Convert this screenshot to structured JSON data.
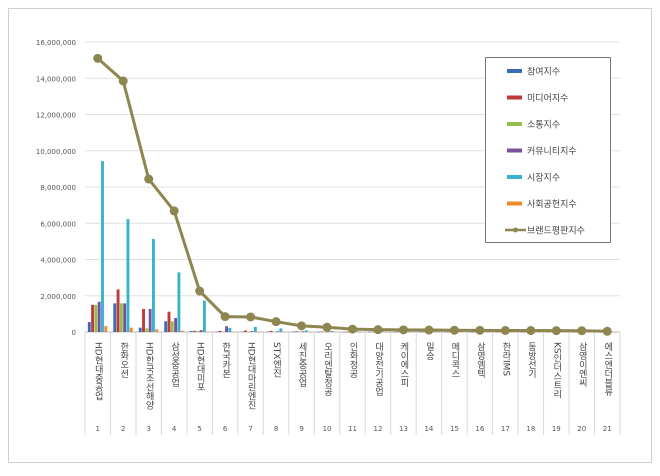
{
  "chart_data": {
    "type": "bar",
    "title": "",
    "xlabel": "",
    "ylabel": "",
    "ylim": [
      0,
      16000000
    ],
    "yticks": [
      "0",
      "2,000,000",
      "4,000,000",
      "6,000,000",
      "8,000,000",
      "10,000,000",
      "12,000,000",
      "14,000,000",
      "16,000,000"
    ],
    "grid": true,
    "legend_position": "top-right",
    "ranks": [
      "1",
      "2",
      "3",
      "4",
      "5",
      "6",
      "7",
      "8",
      "9",
      "10",
      "11",
      "12",
      "13",
      "14",
      "15",
      "16",
      "17",
      "18",
      "19",
      "20",
      "21"
    ],
    "categories": [
      "HD현대중공업",
      "한화오션",
      "HD한국조선해양",
      "삼성중공업",
      "HD현대미포",
      "한국카본",
      "HD현대마린엔진",
      "STX엔진",
      "세진중공업",
      "오리엔탈정공",
      "인화정공",
      "대양전기공업",
      "케이에스피",
      "일승",
      "메디콕스",
      "삼영엠텍",
      "한라IMS",
      "동방선기",
      "KS인더스트리",
      "삼영이엔씨",
      "에스엔더블류"
    ],
    "series": [
      {
        "name": "참여지수",
        "type": "bar",
        "color": "#3c6bb5",
        "values": [
          550000,
          1580000,
          240000,
          590000,
          50000,
          20000,
          20000,
          20000,
          15000,
          10000,
          10000,
          10000,
          10000,
          8000,
          8000,
          8000,
          8000,
          8000,
          8000,
          8000,
          5000
        ]
      },
      {
        "name": "미디어지수",
        "type": "bar",
        "color": "#c0393b",
        "values": [
          1500000,
          2350000,
          1270000,
          1120000,
          60000,
          60000,
          80000,
          60000,
          40000,
          30000,
          20000,
          20000,
          20000,
          15000,
          15000,
          15000,
          15000,
          15000,
          15000,
          15000,
          10000
        ]
      },
      {
        "name": "소통지수",
        "type": "bar",
        "color": "#92c04d",
        "values": [
          1500000,
          1580000,
          200000,
          590000,
          50000,
          20000,
          20000,
          20000,
          15000,
          10000,
          10000,
          10000,
          10000,
          8000,
          8000,
          8000,
          8000,
          8000,
          8000,
          8000,
          5000
        ]
      },
      {
        "name": "커뮤니티지수",
        "type": "bar",
        "color": "#7a519e",
        "values": [
          1670000,
          1580000,
          1270000,
          770000,
          100000,
          320000,
          50000,
          40000,
          40000,
          30000,
          20000,
          20000,
          20000,
          15000,
          15000,
          15000,
          15000,
          15000,
          15000,
          15000,
          10000
        ]
      },
      {
        "name": "시장지수",
        "type": "bar",
        "color": "#37b3d1",
        "values": [
          9430000,
          6230000,
          5130000,
          3290000,
          1730000,
          220000,
          280000,
          200000,
          90000,
          60000,
          40000,
          40000,
          40000,
          30000,
          30000,
          30000,
          30000,
          30000,
          30000,
          30000,
          20000
        ]
      },
      {
        "name": "사회공헌지수",
        "type": "bar",
        "color": "#f08a2a",
        "values": [
          330000,
          240000,
          150000,
          70000,
          10000,
          5000,
          5000,
          5000,
          5000,
          5000,
          5000,
          5000,
          5000,
          5000,
          5000,
          5000,
          5000,
          5000,
          5000,
          5000,
          5000
        ]
      },
      {
        "name": "브랜드평판지수",
        "type": "line",
        "color": "#8e8650",
        "values": [
          15100000,
          13850000,
          8440000,
          6680000,
          2260000,
          850000,
          830000,
          570000,
          340000,
          260000,
          160000,
          130000,
          120000,
          110000,
          100000,
          90000,
          85000,
          80000,
          75000,
          70000,
          40000
        ]
      }
    ]
  }
}
